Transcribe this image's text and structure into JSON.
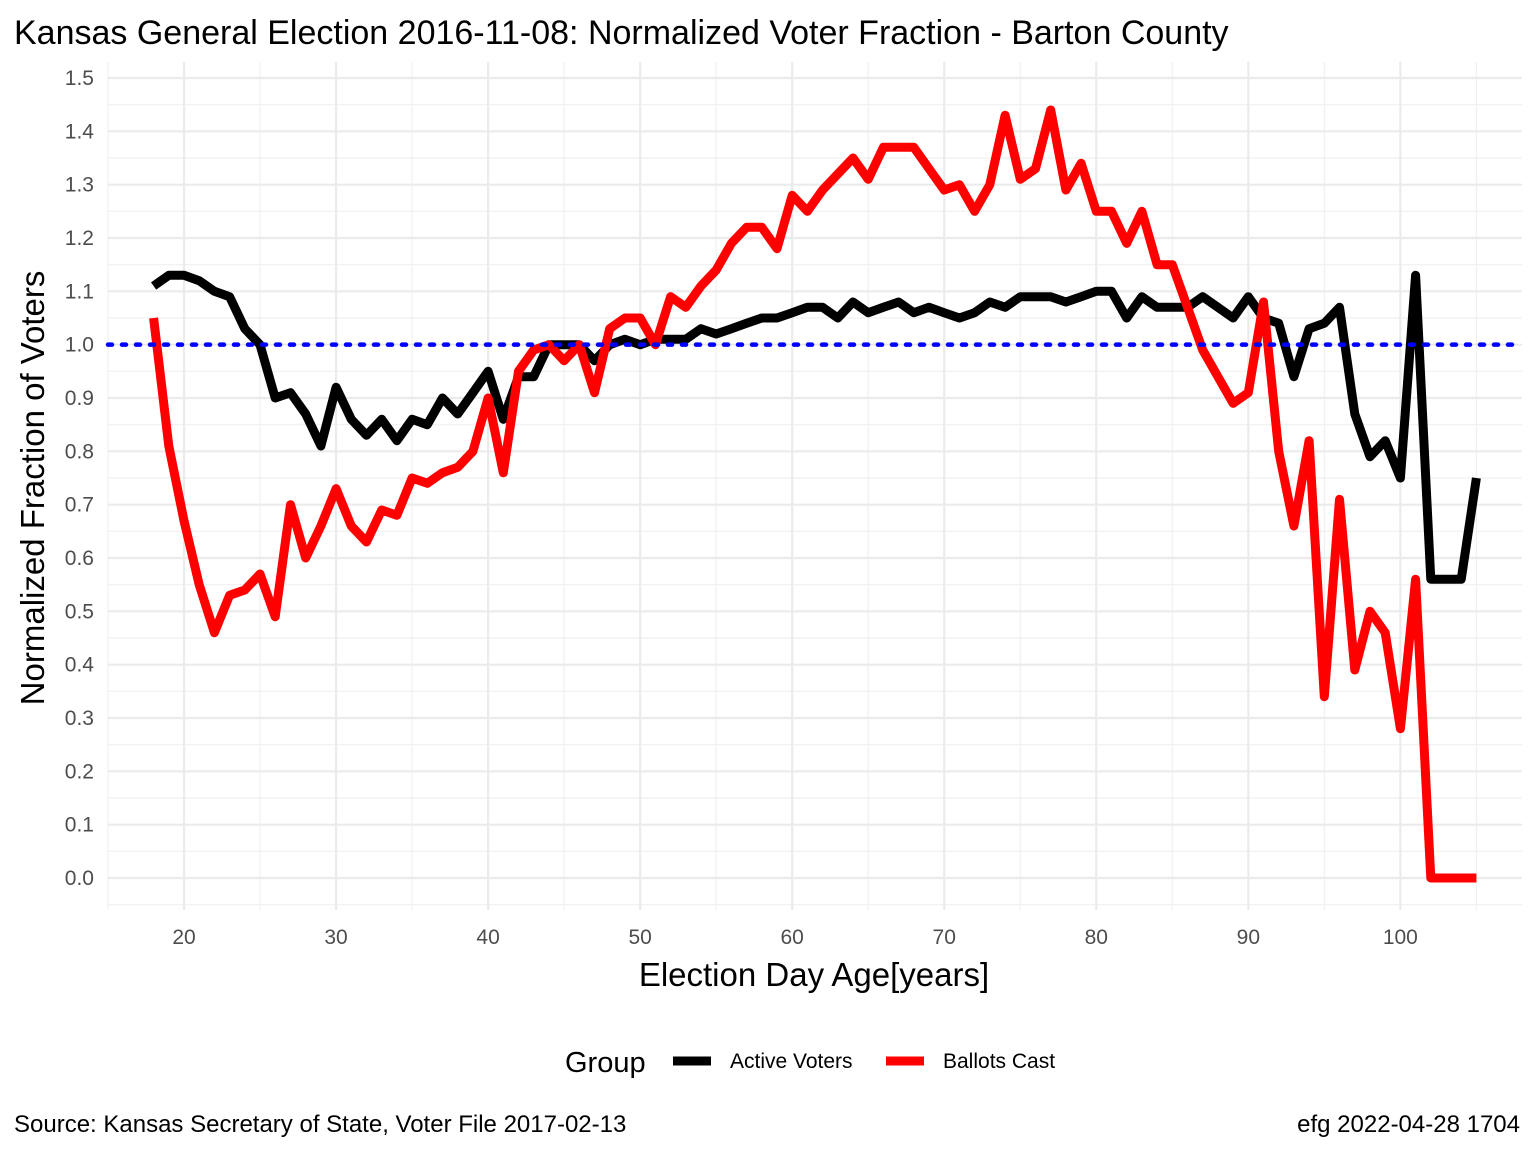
{
  "chart_data": {
    "type": "line",
    "title": "Kansas General Election 2016-11-08:  Normalized Voter Fraction - Barton County",
    "xlabel": "Election Day Age[years]",
    "ylabel": "Normalized Fraction of Voters",
    "xlim": [
      15,
      108
    ],
    "ylim": [
      -0.06,
      1.53
    ],
    "x_ticks": [
      20,
      30,
      40,
      50,
      60,
      70,
      80,
      90,
      100
    ],
    "y_ticks": [
      0.0,
      0.1,
      0.2,
      0.3,
      0.4,
      0.5,
      0.6,
      0.7,
      0.8,
      0.9,
      1.0,
      1.1,
      1.2,
      1.3,
      1.4,
      1.5
    ],
    "x_tick_labels": [
      "20",
      "30",
      "40",
      "50",
      "60",
      "70",
      "80",
      "90",
      "100"
    ],
    "y_tick_labels": [
      "0.0",
      "0.1",
      "0.2",
      "0.3",
      "0.4",
      "0.5",
      "0.6",
      "0.7",
      "0.8",
      "0.9",
      "1.0",
      "1.1",
      "1.2",
      "1.3",
      "1.4",
      "1.5"
    ],
    "reference_line": {
      "y": 1.0,
      "color": "#0000ff",
      "style": "dotted"
    },
    "grid": true,
    "legend": {
      "title": "Group",
      "position": "bottom"
    },
    "x": [
      18,
      19,
      20,
      21,
      22,
      23,
      24,
      25,
      26,
      27,
      28,
      29,
      30,
      31,
      32,
      33,
      34,
      35,
      36,
      37,
      38,
      39,
      40,
      41,
      42,
      43,
      44,
      45,
      46,
      47,
      48,
      49,
      50,
      51,
      52,
      53,
      54,
      55,
      56,
      57,
      58,
      59,
      60,
      61,
      62,
      63,
      64,
      65,
      66,
      67,
      68,
      69,
      70,
      71,
      72,
      73,
      74,
      75,
      76,
      77,
      78,
      79,
      80,
      81,
      82,
      83,
      84,
      85,
      86,
      87,
      88,
      89,
      90,
      91,
      92,
      93,
      94,
      95,
      96,
      97,
      98,
      99,
      100,
      101,
      102,
      103,
      104,
      105
    ],
    "series": [
      {
        "name": "Active Voters",
        "color": "#000000",
        "values": [
          1.11,
          1.13,
          1.13,
          1.12,
          1.1,
          1.09,
          1.03,
          1.0,
          0.9,
          0.91,
          0.87,
          0.81,
          0.92,
          0.86,
          0.83,
          0.86,
          0.82,
          0.86,
          0.85,
          0.9,
          0.87,
          0.91,
          0.95,
          0.86,
          0.94,
          0.94,
          1.0,
          1.0,
          1.0,
          0.97,
          1.0,
          1.01,
          1.0,
          1.01,
          1.01,
          1.01,
          1.03,
          1.02,
          1.03,
          1.04,
          1.05,
          1.05,
          1.06,
          1.07,
          1.07,
          1.05,
          1.08,
          1.06,
          1.07,
          1.08,
          1.06,
          1.07,
          1.06,
          1.05,
          1.06,
          1.08,
          1.07,
          1.09,
          1.09,
          1.09,
          1.08,
          1.09,
          1.1,
          1.1,
          1.05,
          1.09,
          1.07,
          1.07,
          1.07,
          1.09,
          1.07,
          1.05,
          1.09,
          1.05,
          1.04,
          0.94,
          1.03,
          1.04,
          1.07,
          0.87,
          0.79,
          0.82,
          0.75,
          1.13,
          0.56,
          0.56,
          0.56,
          0.75
        ]
      },
      {
        "name": "Ballots Cast",
        "color": "#ff0000",
        "values": [
          1.05,
          0.81,
          0.67,
          0.55,
          0.46,
          0.53,
          0.54,
          0.57,
          0.49,
          0.7,
          0.6,
          0.66,
          0.73,
          0.66,
          0.63,
          0.69,
          0.68,
          0.75,
          0.74,
          0.76,
          0.77,
          0.8,
          0.9,
          0.76,
          0.95,
          0.99,
          1.0,
          0.97,
          1.0,
          0.91,
          1.03,
          1.05,
          1.05,
          1.0,
          1.09,
          1.07,
          1.11,
          1.14,
          1.19,
          1.22,
          1.22,
          1.18,
          1.28,
          1.25,
          1.29,
          1.32,
          1.35,
          1.31,
          1.37,
          1.37,
          1.37,
          1.33,
          1.29,
          1.3,
          1.25,
          1.3,
          1.43,
          1.31,
          1.33,
          1.44,
          1.29,
          1.34,
          1.25,
          1.25,
          1.19,
          1.25,
          1.15,
          1.15,
          1.07,
          0.99,
          0.94,
          0.89,
          0.91,
          1.08,
          0.8,
          0.66,
          0.82,
          0.34,
          0.71,
          0.39,
          0.5,
          0.46,
          0.28,
          0.56,
          0.0,
          0.0,
          0.0,
          0.0
        ]
      }
    ]
  },
  "captions": {
    "source": "Source:  Kansas Secretary of State, Voter File  2017-02-13",
    "credit": "efg 2022-04-28 1704"
  }
}
